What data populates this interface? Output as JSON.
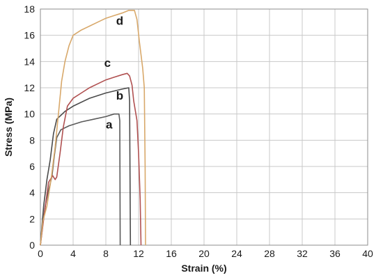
{
  "chart_data": {
    "type": "line",
    "xlabel": "Strain (%)",
    "ylabel": "Stress (MPa)",
    "xlim": [
      0,
      40
    ],
    "ylim": [
      0,
      18
    ],
    "xticks": [
      0,
      4,
      8,
      12,
      16,
      20,
      24,
      28,
      32,
      36,
      40
    ],
    "yticks": [
      0,
      2,
      4,
      6,
      8,
      10,
      12,
      14,
      16,
      18
    ],
    "grid": true,
    "series": [
      {
        "name": "a",
        "color": "#5a5a5a",
        "points": [
          [
            0,
            0
          ],
          [
            0.3,
            1.6
          ],
          [
            0.6,
            3.0
          ],
          [
            1.0,
            4.2
          ],
          [
            1.4,
            5.2
          ],
          [
            1.7,
            6.8
          ],
          [
            2.0,
            8.2
          ],
          [
            2.5,
            8.8
          ],
          [
            3.5,
            9.1
          ],
          [
            5.0,
            9.4
          ],
          [
            6.5,
            9.6
          ],
          [
            8.0,
            9.8
          ],
          [
            9.0,
            10.0
          ],
          [
            9.6,
            10.0
          ],
          [
            9.7,
            9.5
          ],
          [
            9.75,
            0
          ]
        ]
      },
      {
        "name": "b",
        "color": "#4a4a4a",
        "points": [
          [
            0,
            0
          ],
          [
            0.4,
            3.0
          ],
          [
            0.8,
            5.0
          ],
          [
            1.2,
            6.5
          ],
          [
            1.6,
            8.5
          ],
          [
            2.0,
            9.6
          ],
          [
            3.0,
            10.2
          ],
          [
            4.0,
            10.6
          ],
          [
            6.0,
            11.2
          ],
          [
            8.0,
            11.6
          ],
          [
            10.0,
            11.9
          ],
          [
            10.8,
            12.0
          ],
          [
            10.9,
            11.0
          ],
          [
            11.0,
            0
          ]
        ]
      },
      {
        "name": "c",
        "color": "#b05050",
        "points": [
          [
            0,
            0
          ],
          [
            0.5,
            2.5
          ],
          [
            1.0,
            4.8
          ],
          [
            1.5,
            5.3
          ],
          [
            1.8,
            5.0
          ],
          [
            2.0,
            5.2
          ],
          [
            2.4,
            7.0
          ],
          [
            2.8,
            9.0
          ],
          [
            3.3,
            10.6
          ],
          [
            4.0,
            11.2
          ],
          [
            5.0,
            11.6
          ],
          [
            6.0,
            12.0
          ],
          [
            7.0,
            12.3
          ],
          [
            8.0,
            12.6
          ],
          [
            9.0,
            12.8
          ],
          [
            10.0,
            13.0
          ],
          [
            10.6,
            13.1
          ],
          [
            10.9,
            12.9
          ],
          [
            11.2,
            12.2
          ],
          [
            11.4,
            11.0
          ],
          [
            11.8,
            9.5
          ],
          [
            12.0,
            7.0
          ],
          [
            12.2,
            3.5
          ],
          [
            12.3,
            0
          ]
        ]
      },
      {
        "name": "d",
        "color": "#d8a86a",
        "points": [
          [
            0,
            0
          ],
          [
            0.3,
            1.8
          ],
          [
            0.8,
            3.0
          ],
          [
            1.3,
            5.0
          ],
          [
            1.8,
            7.5
          ],
          [
            2.2,
            10.0
          ],
          [
            2.6,
            12.5
          ],
          [
            3.0,
            14.0
          ],
          [
            3.5,
            15.2
          ],
          [
            4.0,
            16.0
          ],
          [
            5.0,
            16.4
          ],
          [
            6.0,
            16.7
          ],
          [
            7.0,
            17.0
          ],
          [
            8.0,
            17.3
          ],
          [
            9.0,
            17.5
          ],
          [
            10.0,
            17.7
          ],
          [
            10.8,
            17.9
          ],
          [
            11.5,
            17.9
          ],
          [
            11.8,
            17.2
          ],
          [
            12.1,
            15.5
          ],
          [
            12.5,
            13.5
          ],
          [
            12.7,
            12.0
          ],
          [
            12.8,
            6.0
          ],
          [
            12.85,
            0
          ]
        ]
      }
    ],
    "annotations": [
      {
        "text": "a",
        "x": 8.4,
        "y": 8.9
      },
      {
        "text": "b",
        "x": 9.7,
        "y": 11.1
      },
      {
        "text": "c",
        "x": 8.2,
        "y": 13.6
      },
      {
        "text": "d",
        "x": 9.7,
        "y": 16.8
      }
    ]
  }
}
